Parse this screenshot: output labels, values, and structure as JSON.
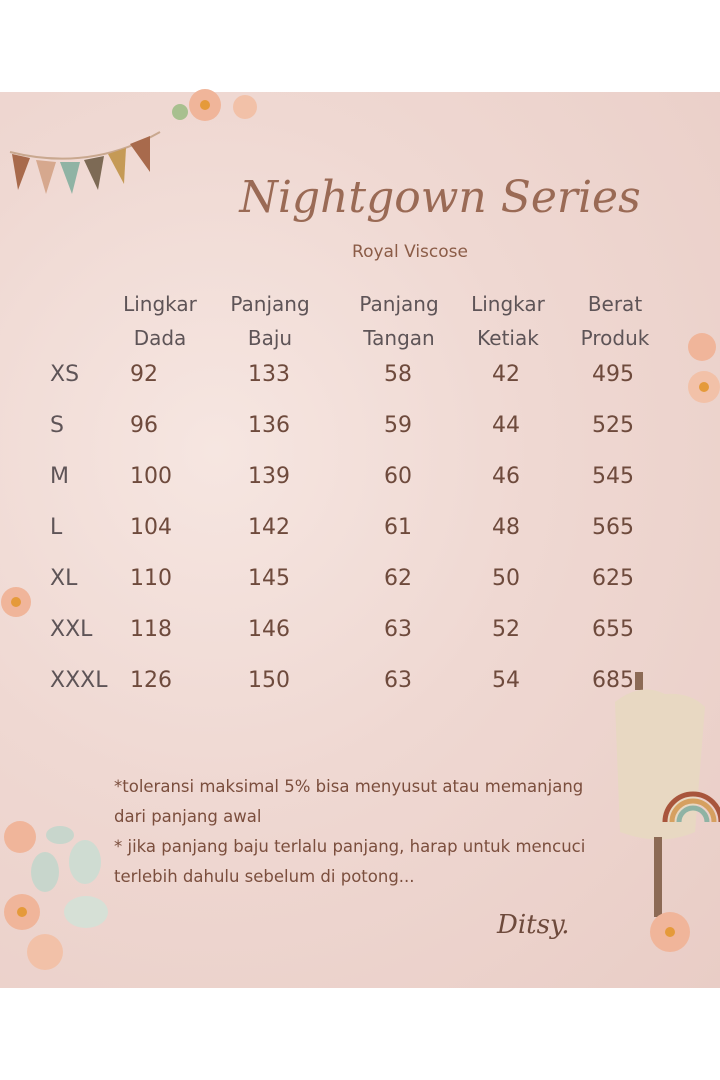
{
  "title": "Nightgown Series",
  "subtitle": "Royal Viscose",
  "headers": [
    {
      "l1": "Lingkar",
      "l2": "Dada"
    },
    {
      "l1": "Panjang",
      "l2": "Baju"
    },
    {
      "l1": "Panjang",
      "l2": "Tangan"
    },
    {
      "l1": "Lingkar",
      "l2": "Ketiak"
    },
    {
      "l1": "Berat",
      "l2": "Produk"
    }
  ],
  "rows": [
    {
      "size": "XS",
      "v": [
        "92",
        "133",
        "58",
        "42",
        "495"
      ]
    },
    {
      "size": "S",
      "v": [
        "96",
        "136",
        "59",
        "44",
        "525"
      ]
    },
    {
      "size": "M",
      "v": [
        "100",
        "139",
        "60",
        "46",
        "545"
      ]
    },
    {
      "size": "L",
      "v": [
        "104",
        "142",
        "61",
        "48",
        "565"
      ]
    },
    {
      "size": "XL",
      "v": [
        "110",
        "145",
        "62",
        "50",
        "625"
      ]
    },
    {
      "size": "XXL",
      "v": [
        "118",
        "146",
        "63",
        "52",
        "655"
      ]
    },
    {
      "size": "XXXL",
      "v": [
        "126",
        "150",
        "63",
        "54",
        "685"
      ]
    }
  ],
  "notes": [
    "*toleransi  maksimal 5% bisa menyusut atau memanjang",
    "dari panjang awal",
    "* jika panjang baju terlalu panjang, harap  untuk mencuci",
    "terlebih dahulu sebelum di potong..."
  ],
  "signature": "Ditsy.",
  "colors": {
    "background": "#efd8d2",
    "title": "#9a6a55",
    "text": "#6e4a3c",
    "header": "#5e5457"
  }
}
